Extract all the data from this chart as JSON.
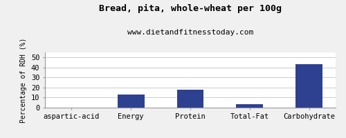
{
  "title": "Bread, pita, whole-wheat per 100g",
  "subtitle": "www.dietandfitnesstoday.com",
  "categories": [
    "aspartic-acid",
    "Energy",
    "Protein",
    "Total-Fat",
    "Carbohydrate"
  ],
  "values": [
    0,
    13,
    18,
    3.2,
    43
  ],
  "bar_color": "#2e4090",
  "ylabel": "Percentage of RDH (%)",
  "ylim": [
    0,
    55
  ],
  "yticks": [
    0,
    10,
    20,
    30,
    40,
    50
  ],
  "background_color": "#f0f0f0",
  "plot_bg_color": "#ffffff",
  "title_fontsize": 9.5,
  "subtitle_fontsize": 8,
  "ylabel_fontsize": 7,
  "tick_fontsize": 7.5,
  "bar_width": 0.45
}
